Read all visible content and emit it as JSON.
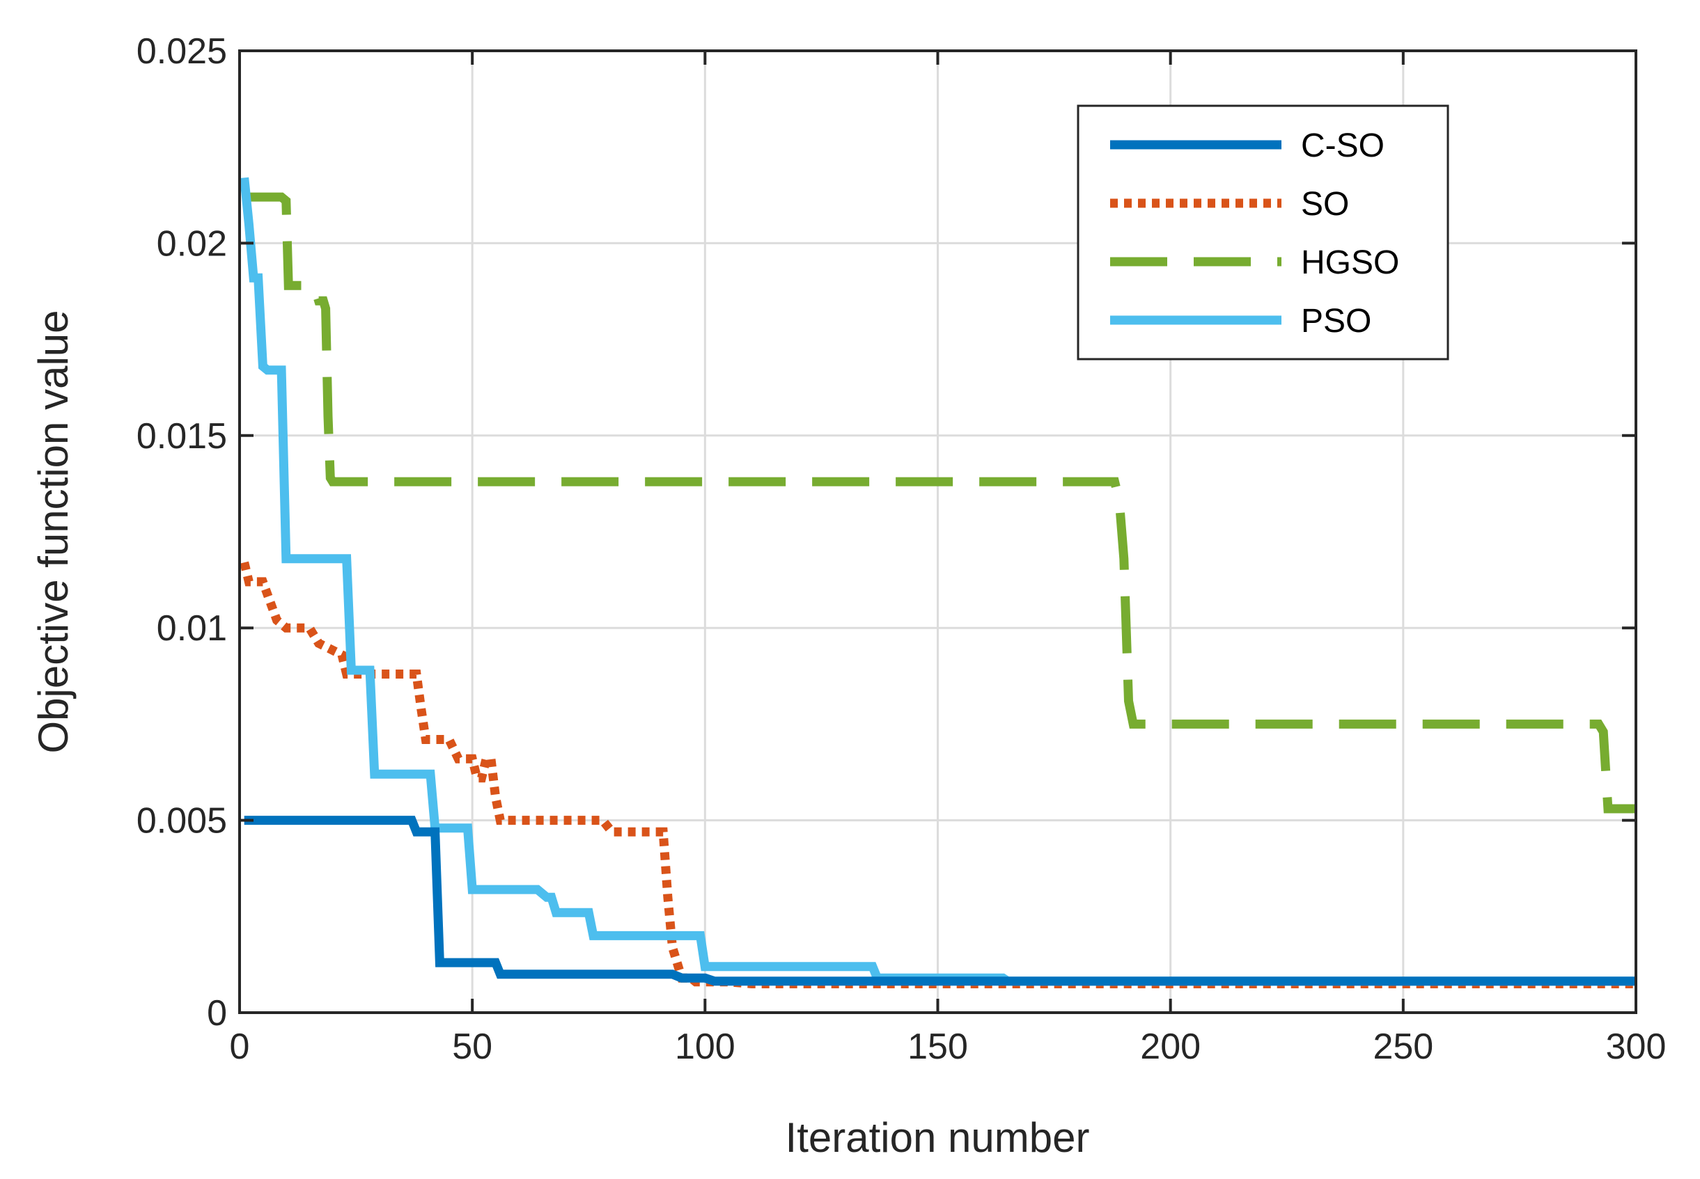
{
  "chart_data": {
    "type": "line",
    "title": "",
    "xlabel": "Iteration number",
    "ylabel": "Objective function value",
    "xlim": [
      0,
      300
    ],
    "ylim": [
      0,
      0.025
    ],
    "xticks": [
      0,
      50,
      100,
      150,
      200,
      250,
      300
    ],
    "yticks": [
      0,
      0.005,
      0.01,
      0.015,
      0.02,
      0.025
    ],
    "xtick_labels": [
      "0",
      "50",
      "100",
      "150",
      "200",
      "250",
      "300"
    ],
    "ytick_labels": [
      "0",
      "0.005",
      "0.01",
      "0.015",
      "0.02",
      "0.025"
    ],
    "grid": true,
    "legend_position": "top-right",
    "series": [
      {
        "name": "C-SO",
        "color": "#0072BD",
        "style": "solid",
        "points": [
          [
            1,
            0.005
          ],
          [
            37,
            0.005
          ],
          [
            38,
            0.0047
          ],
          [
            42,
            0.0047
          ],
          [
            43,
            0.0013
          ],
          [
            55,
            0.0013
          ],
          [
            56,
            0.001
          ],
          [
            93,
            0.001
          ],
          [
            95,
            0.0009
          ],
          [
            100,
            0.0009
          ],
          [
            102,
            0.00082
          ],
          [
            300,
            0.00082
          ]
        ]
      },
      {
        "name": "SO",
        "color": "#D95319",
        "style": "dotted",
        "points": [
          [
            1,
            0.0117
          ],
          [
            2,
            0.0112
          ],
          [
            5,
            0.0112
          ],
          [
            8,
            0.0102
          ],
          [
            10,
            0.01
          ],
          [
            15,
            0.01
          ],
          [
            17,
            0.0096
          ],
          [
            22,
            0.0093
          ],
          [
            23,
            0.0088
          ],
          [
            38,
            0.0088
          ],
          [
            39,
            0.0079
          ],
          [
            40,
            0.0071
          ],
          [
            45,
            0.0071
          ],
          [
            47,
            0.0066
          ],
          [
            50,
            0.0066
          ],
          [
            51,
            0.0061
          ],
          [
            52,
            0.0061
          ],
          [
            53,
            0.0066
          ],
          [
            54,
            0.0066
          ],
          [
            55,
            0.0056
          ],
          [
            56,
            0.005
          ],
          [
            78,
            0.005
          ],
          [
            80,
            0.0047
          ],
          [
            91,
            0.0047
          ],
          [
            92,
            0.003
          ],
          [
            93,
            0.0017
          ],
          [
            95,
            0.0009
          ],
          [
            97,
            0.0009
          ],
          [
            98,
            0.0008
          ],
          [
            100,
            0.0008
          ],
          [
            105,
            0.0008
          ],
          [
            110,
            0.00075
          ],
          [
            300,
            0.00075
          ]
        ]
      },
      {
        "name": "HGSO",
        "color": "#77AC30",
        "style": "dashed",
        "points": [
          [
            1,
            0.0212
          ],
          [
            9,
            0.0212
          ],
          [
            10,
            0.0211
          ],
          [
            10.5,
            0.0189
          ],
          [
            16,
            0.0189
          ],
          [
            17,
            0.0185
          ],
          [
            18,
            0.0185
          ],
          [
            18.5,
            0.0183
          ],
          [
            19,
            0.0155
          ],
          [
            19.5,
            0.0139
          ],
          [
            20,
            0.0138
          ],
          [
            188,
            0.0138
          ],
          [
            189,
            0.0133
          ],
          [
            190,
            0.0118
          ],
          [
            191,
            0.0081
          ],
          [
            192,
            0.0075
          ],
          [
            292,
            0.0075
          ],
          [
            293,
            0.0073
          ],
          [
            294,
            0.0053
          ],
          [
            300,
            0.0053
          ]
        ]
      },
      {
        "name": "PSO",
        "color": "#4DBEEE",
        "style": "solid",
        "points": [
          [
            1,
            0.0217
          ],
          [
            2,
            0.0205
          ],
          [
            3,
            0.0191
          ],
          [
            4,
            0.0191
          ],
          [
            5,
            0.0168
          ],
          [
            6,
            0.0167
          ],
          [
            7,
            0.0167
          ],
          [
            9,
            0.0167
          ],
          [
            10,
            0.0118
          ],
          [
            23,
            0.0118
          ],
          [
            24,
            0.0089
          ],
          [
            28,
            0.0089
          ],
          [
            29,
            0.0062
          ],
          [
            41,
            0.0062
          ],
          [
            42,
            0.0048
          ],
          [
            49,
            0.0048
          ],
          [
            50,
            0.0032
          ],
          [
            64,
            0.0032
          ],
          [
            66,
            0.003
          ],
          [
            67,
            0.003
          ],
          [
            68,
            0.0026
          ],
          [
            75,
            0.0026
          ],
          [
            76,
            0.002
          ],
          [
            99,
            0.002
          ],
          [
            100,
            0.0012
          ],
          [
            136,
            0.0012
          ],
          [
            137,
            0.0009
          ],
          [
            164,
            0.0009
          ],
          [
            165,
            0.00082
          ],
          [
            300,
            0.00082
          ]
        ]
      }
    ]
  }
}
